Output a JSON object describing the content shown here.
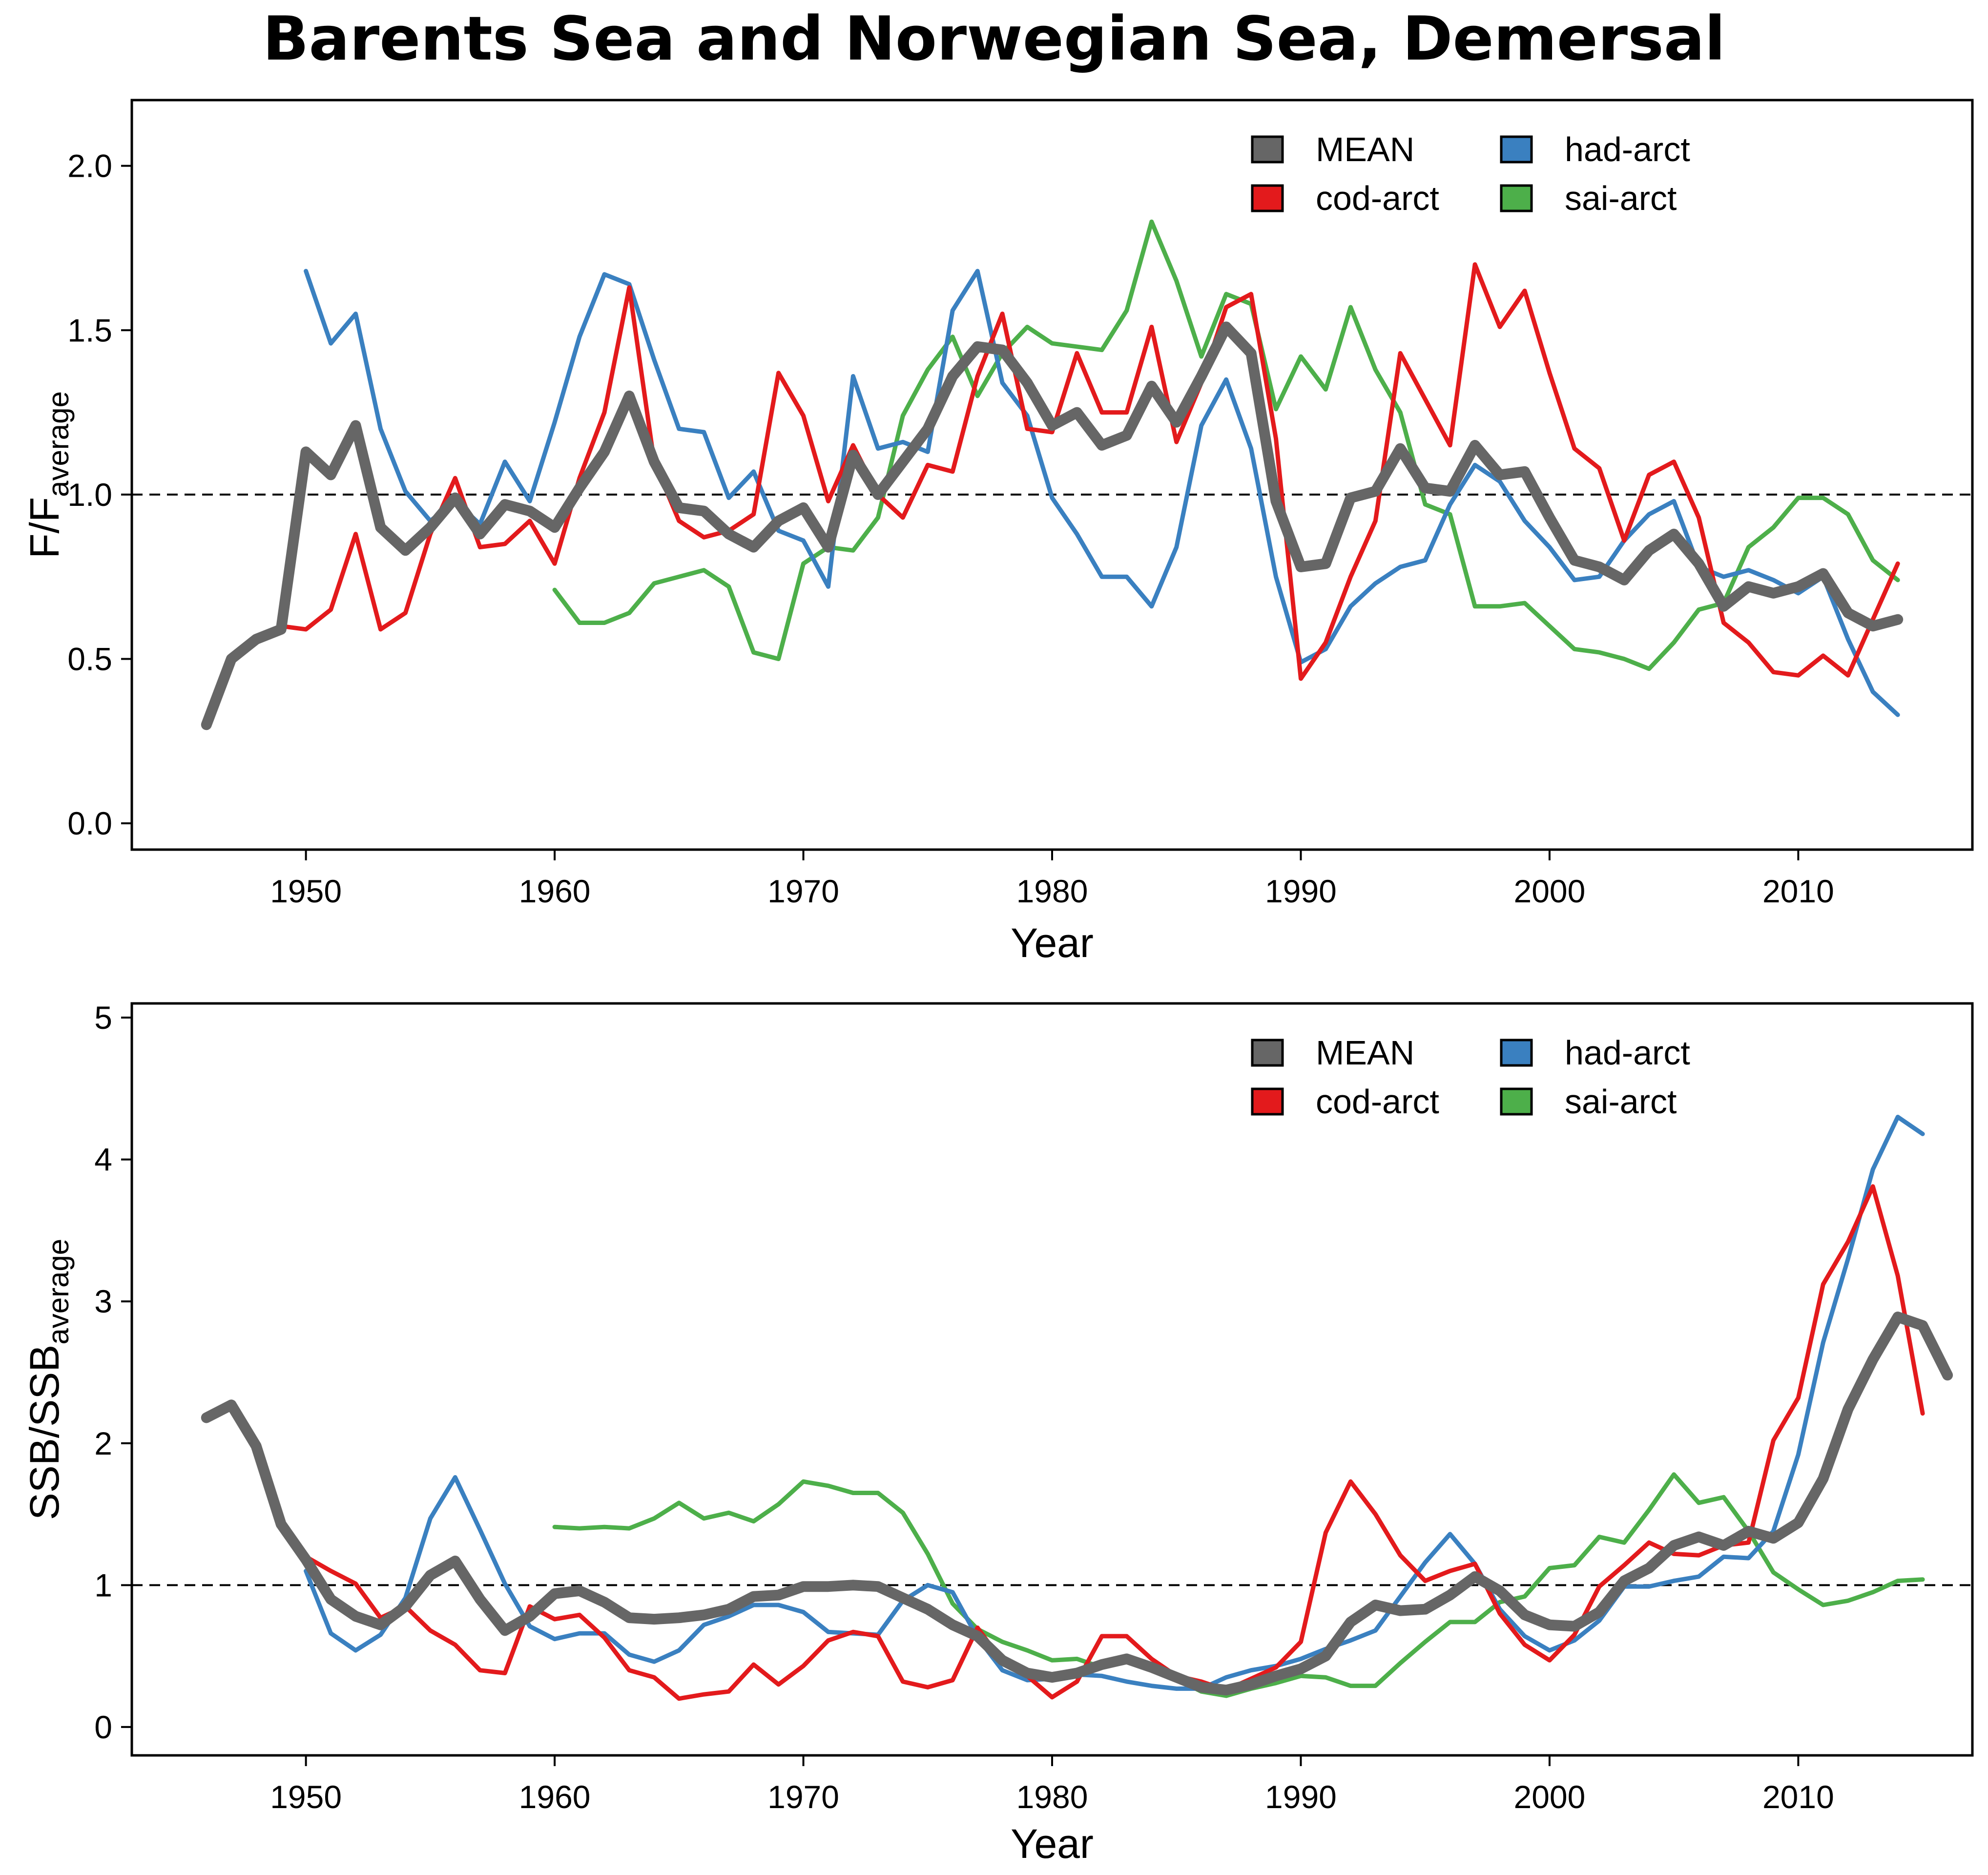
{
  "title": "Barents Sea and Norwegian Sea, Demersal",
  "colors": {
    "MEAN": "#666666",
    "cod-arct": "#e31a1c",
    "had-arct": "#3a80c0",
    "sai-arct": "#4daf4a"
  },
  "chart_data": [
    {
      "type": "line",
      "title": "",
      "xlabel": "Year",
      "ylabel_main": "F/F",
      "ylabel_sub": "average",
      "xlim": [
        1943,
        2017
      ],
      "ylim": [
        -0.08,
        2.2
      ],
      "xticks": [
        "1950",
        "1960",
        "1970",
        "1980",
        "1990",
        "2000",
        "2010"
      ],
      "yticks": [
        "0.0",
        "0.5",
        "1.0",
        "1.5",
        "2.0"
      ],
      "reference_line": 1.0,
      "grid": false,
      "legend_position": "top-right",
      "legend": [
        "MEAN",
        "had-arct",
        "cod-arct",
        "sai-arct"
      ],
      "series": [
        {
          "name": "MEAN",
          "x_start": 1946,
          "values": [
            0.3,
            0.5,
            0.56,
            0.59,
            1.13,
            1.06,
            1.21,
            0.9,
            0.83,
            0.9,
            0.99,
            0.88,
            0.97,
            0.95,
            0.9,
            1.02,
            1.13,
            1.3,
            1.1,
            0.96,
            0.95,
            0.88,
            0.84,
            0.92,
            0.96,
            0.84,
            1.12,
            1.0,
            1.1,
            1.2,
            1.36,
            1.45,
            1.44,
            1.34,
            1.21,
            1.25,
            1.15,
            1.18,
            1.33,
            1.22,
            1.36,
            1.51,
            1.43,
            0.98,
            0.78,
            0.79,
            0.99,
            1.01,
            1.14,
            1.02,
            1.01,
            1.15,
            1.06,
            1.07,
            0.93,
            0.8,
            0.78,
            0.74,
            0.83,
            0.88,
            0.79,
            0.66,
            0.72,
            0.7,
            0.72,
            0.76,
            0.64,
            0.6,
            0.62
          ]
        },
        {
          "name": "cod-arct",
          "x_start": 1946,
          "values": [
            0.3,
            0.51,
            0.56,
            0.6,
            0.59,
            0.65,
            0.88,
            0.59,
            0.64,
            0.88,
            1.05,
            0.84,
            0.85,
            0.92,
            0.79,
            1.05,
            1.25,
            1.63,
            1.1,
            0.92,
            0.87,
            0.89,
            0.94,
            1.37,
            1.24,
            0.98,
            1.15,
            1.0,
            0.93,
            1.09,
            1.07,
            1.36,
            1.55,
            1.2,
            1.19,
            1.43,
            1.25,
            1.25,
            1.51,
            1.16,
            1.34,
            1.57,
            1.61,
            1.17,
            0.44,
            0.55,
            0.75,
            0.92,
            1.43,
            1.29,
            1.15,
            1.7,
            1.51,
            1.62,
            1.37,
            1.14,
            1.08,
            0.86,
            1.06,
            1.1,
            0.93,
            0.61,
            0.55,
            0.46,
            0.45,
            0.51,
            0.45,
            0.62,
            0.79
          ]
        },
        {
          "name": "had-arct",
          "x_start": 1950,
          "values": [
            1.68,
            1.46,
            1.55,
            1.2,
            1.01,
            0.92,
            0.98,
            0.91,
            1.1,
            0.98,
            1.22,
            1.48,
            1.67,
            1.64,
            1.41,
            1.2,
            1.19,
            0.99,
            1.07,
            0.89,
            0.86,
            0.72,
            1.36,
            1.14,
            1.16,
            1.13,
            1.56,
            1.68,
            1.34,
            1.24,
            0.99,
            0.88,
            0.75,
            0.75,
            0.66,
            0.84,
            1.21,
            1.35,
            1.14,
            0.75,
            0.49,
            0.53,
            0.66,
            0.73,
            0.78,
            0.8,
            0.97,
            1.09,
            1.04,
            0.92,
            0.84,
            0.74,
            0.75,
            0.86,
            0.94,
            0.98,
            0.78,
            0.75,
            0.77,
            0.74,
            0.7,
            0.75,
            0.56,
            0.4,
            0.33
          ]
        },
        {
          "name": "sai-arct",
          "x_start": 1960,
          "values": [
            0.71,
            0.61,
            0.61,
            0.64,
            0.73,
            0.75,
            0.77,
            0.72,
            0.52,
            0.5,
            0.79,
            0.84,
            0.83,
            0.93,
            1.24,
            1.38,
            1.48,
            1.3,
            1.43,
            1.51,
            1.46,
            1.45,
            1.44,
            1.56,
            1.83,
            1.65,
            1.42,
            1.61,
            1.58,
            1.26,
            1.42,
            1.32,
            1.57,
            1.38,
            1.25,
            0.97,
            0.94,
            0.66,
            0.66,
            0.67,
            0.6,
            0.53,
            0.52,
            0.5,
            0.47,
            0.55,
            0.65,
            0.67,
            0.84,
            0.9,
            0.99,
            0.99,
            0.94,
            0.8,
            0.74
          ]
        }
      ]
    },
    {
      "type": "line",
      "title": "",
      "xlabel": "Year",
      "ylabel_main": "SSB/SSB",
      "ylabel_sub": "average",
      "xlim": [
        1943,
        2017
      ],
      "ylim": [
        -0.2,
        5.1
      ],
      "xticks": [
        "1950",
        "1960",
        "1970",
        "1980",
        "1990",
        "2000",
        "2010"
      ],
      "yticks": [
        "0",
        "1",
        "2",
        "3",
        "4",
        "5"
      ],
      "reference_line": 1.0,
      "grid": false,
      "legend_position": "top-right",
      "legend": [
        "MEAN",
        "had-arct",
        "cod-arct",
        "sai-arct"
      ],
      "series": [
        {
          "name": "MEAN",
          "x_start": 1946,
          "values": [
            2.18,
            2.27,
            1.98,
            1.43,
            1.18,
            0.9,
            0.78,
            0.72,
            0.85,
            1.07,
            1.17,
            0.9,
            0.68,
            0.78,
            0.94,
            0.96,
            0.88,
            0.77,
            0.76,
            0.77,
            0.79,
            0.83,
            0.92,
            0.93,
            0.99,
            0.99,
            1.0,
            0.99,
            0.91,
            0.83,
            0.72,
            0.64,
            0.47,
            0.38,
            0.35,
            0.38,
            0.44,
            0.48,
            0.42,
            0.35,
            0.28,
            0.26,
            0.3,
            0.36,
            0.41,
            0.5,
            0.74,
            0.86,
            0.82,
            0.83,
            0.93,
            1.06,
            0.96,
            0.79,
            0.72,
            0.71,
            0.81,
            1.03,
            1.12,
            1.28,
            1.34,
            1.28,
            1.38,
            1.33,
            1.44,
            1.75,
            2.24,
            2.59,
            2.89,
            2.83,
            2.48
          ]
        },
        {
          "name": "cod-arct",
          "x_start": 1946,
          "values": [
            2.18,
            2.26,
            1.99,
            1.43,
            1.2,
            1.1,
            1.01,
            0.77,
            0.85,
            0.68,
            0.58,
            0.4,
            0.38,
            0.85,
            0.76,
            0.79,
            0.63,
            0.4,
            0.35,
            0.2,
            0.23,
            0.25,
            0.44,
            0.3,
            0.43,
            0.61,
            0.67,
            0.64,
            0.32,
            0.28,
            0.33,
            0.7,
            0.46,
            0.36,
            0.21,
            0.32,
            0.64,
            0.64,
            0.48,
            0.36,
            0.32,
            0.26,
            0.34,
            0.42,
            0.6,
            1.37,
            1.73,
            1.5,
            1.21,
            1.03,
            1.1,
            1.15,
            0.8,
            0.58,
            0.47,
            0.65,
            0.99,
            1.14,
            1.3,
            1.22,
            1.21,
            1.28,
            1.3,
            2.02,
            2.32,
            3.12,
            3.42,
            3.81,
            3.18,
            2.21
          ]
        },
        {
          "name": "had-arct",
          "x_start": 1950,
          "values": [
            1.1,
            0.66,
            0.54,
            0.65,
            0.91,
            1.47,
            1.76,
            1.39,
            1.01,
            0.71,
            0.62,
            0.66,
            0.66,
            0.51,
            0.46,
            0.54,
            0.72,
            0.78,
            0.86,
            0.86,
            0.81,
            0.67,
            0.66,
            0.65,
            0.89,
            1.0,
            0.95,
            0.63,
            0.4,
            0.33,
            0.34,
            0.37,
            0.36,
            0.32,
            0.29,
            0.27,
            0.27,
            0.35,
            0.4,
            0.43,
            0.48,
            0.55,
            0.61,
            0.68,
            0.92,
            1.16,
            1.36,
            1.15,
            0.83,
            0.64,
            0.54,
            0.61,
            0.75,
            0.99,
            0.99,
            1.03,
            1.06,
            1.2,
            1.19,
            1.38,
            1.92,
            2.71,
            3.3,
            3.93,
            4.3,
            4.18
          ]
        },
        {
          "name": "sai-arct",
          "x_start": 1960,
          "values": [
            1.41,
            1.4,
            1.41,
            1.4,
            1.47,
            1.58,
            1.47,
            1.51,
            1.45,
            1.57,
            1.73,
            1.7,
            1.65,
            1.65,
            1.51,
            1.22,
            0.87,
            0.69,
            0.6,
            0.54,
            0.47,
            0.48,
            0.42,
            0.47,
            0.43,
            0.34,
            0.25,
            0.22,
            0.27,
            0.31,
            0.36,
            0.35,
            0.29,
            0.29,
            0.45,
            0.6,
            0.74,
            0.74,
            0.88,
            0.92,
            1.12,
            1.14,
            1.34,
            1.3,
            1.53,
            1.78,
            1.58,
            1.62,
            1.38,
            1.09,
            0.97,
            0.86,
            0.89,
            0.95,
            1.03,
            1.04
          ]
        }
      ]
    }
  ]
}
